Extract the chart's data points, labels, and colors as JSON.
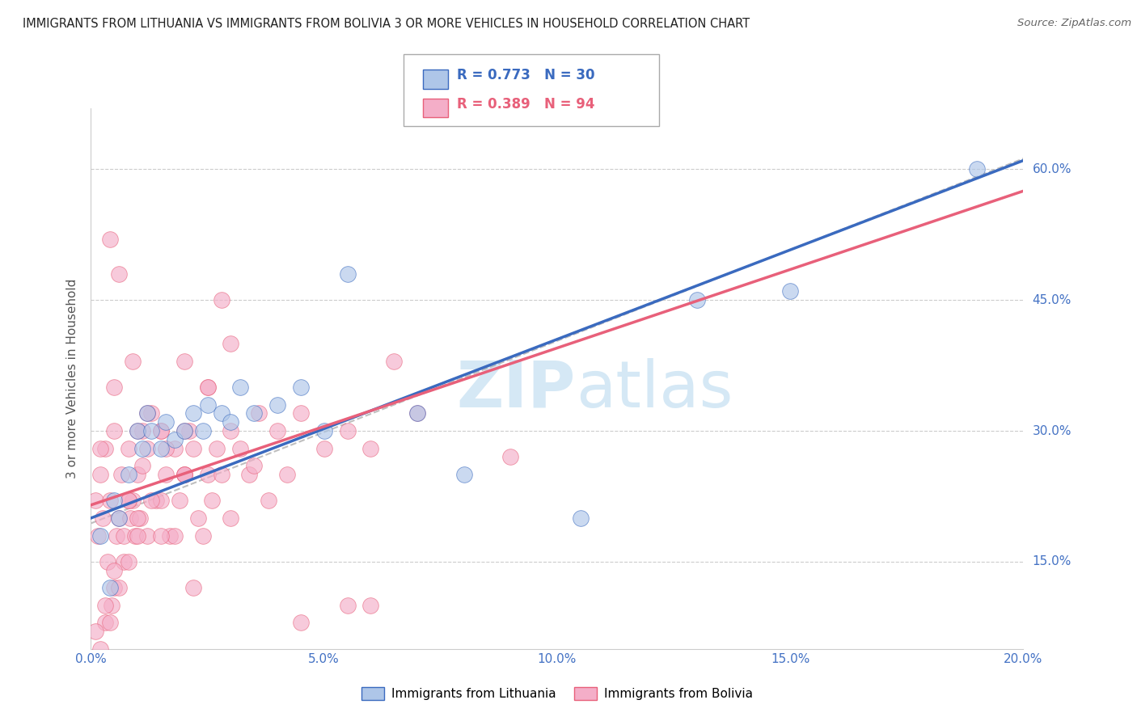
{
  "title": "IMMIGRANTS FROM LITHUANIA VS IMMIGRANTS FROM BOLIVIA 3 OR MORE VEHICLES IN HOUSEHOLD CORRELATION CHART",
  "source": "Source: ZipAtlas.com",
  "ylabel": "3 or more Vehicles in Household",
  "legend_lithuania": "Immigrants from Lithuania",
  "legend_bolivia": "Immigrants from Bolivia",
  "R_lithuania": 0.773,
  "N_lithuania": 30,
  "R_bolivia": 0.389,
  "N_bolivia": 94,
  "color_lithuania": "#aec6e8",
  "color_bolivia": "#f4aec8",
  "line_color_lithuania": "#3a6abf",
  "line_color_bolivia": "#e8607a",
  "dashed_color": "#b0b0b0",
  "watermark_color": "#d5e8f5",
  "xlim": [
    0.0,
    20.0
  ],
  "ylim": [
    5.0,
    67.0
  ],
  "ytick_vals": [
    15,
    30,
    45,
    60
  ],
  "xtick_vals": [
    0,
    5,
    10,
    15,
    20
  ],
  "lith_intercept": 20.0,
  "lith_slope": 2.05,
  "boliv_intercept": 21.5,
  "boliv_slope": 1.8,
  "lithuania_x": [
    0.2,
    0.4,
    0.5,
    0.6,
    0.8,
    1.0,
    1.1,
    1.2,
    1.3,
    1.5,
    1.6,
    1.8,
    2.0,
    2.2,
    2.4,
    2.5,
    2.8,
    3.0,
    3.2,
    3.5,
    4.0,
    4.5,
    5.0,
    5.5,
    7.0,
    8.0,
    10.5,
    13.0,
    15.0,
    19.0
  ],
  "lithuania_y": [
    18,
    12,
    22,
    20,
    25,
    30,
    28,
    32,
    30,
    28,
    31,
    29,
    30,
    32,
    30,
    33,
    32,
    31,
    35,
    32,
    33,
    35,
    30,
    48,
    32,
    25,
    20,
    45,
    46,
    60
  ],
  "bolivia_x": [
    0.1,
    0.15,
    0.2,
    0.25,
    0.3,
    0.35,
    0.4,
    0.45,
    0.5,
    0.55,
    0.6,
    0.65,
    0.7,
    0.8,
    0.85,
    0.9,
    0.95,
    1.0,
    1.05,
    1.1,
    1.2,
    1.3,
    1.4,
    1.5,
    1.6,
    1.7,
    1.8,
    1.9,
    2.0,
    2.1,
    2.2,
    2.3,
    2.4,
    2.5,
    2.6,
    2.7,
    2.8,
    3.0,
    3.2,
    3.4,
    3.6,
    3.8,
    4.0,
    4.2,
    4.5,
    5.0,
    5.5,
    6.0,
    6.5,
    7.0,
    0.3,
    0.5,
    0.7,
    1.0,
    1.2,
    1.5,
    2.0,
    2.5,
    0.2,
    0.4,
    0.6,
    0.8,
    1.0,
    1.3,
    1.6,
    2.0,
    2.5,
    3.0,
    0.1,
    0.3,
    0.5,
    0.8,
    1.1,
    1.5,
    2.0,
    2.8,
    0.4,
    0.6,
    0.9,
    1.2,
    1.8,
    2.2,
    0.2,
    0.5,
    0.8,
    1.0,
    1.5,
    2.0,
    3.0,
    4.5,
    9.0,
    6.0,
    3.5,
    5.5
  ],
  "bolivia_y": [
    22,
    18,
    25,
    20,
    28,
    15,
    22,
    10,
    30,
    18,
    20,
    25,
    18,
    28,
    20,
    22,
    18,
    25,
    20,
    30,
    28,
    32,
    22,
    30,
    25,
    18,
    28,
    22,
    25,
    30,
    28,
    20,
    18,
    25,
    22,
    28,
    25,
    30,
    28,
    25,
    32,
    22,
    30,
    25,
    32,
    28,
    30,
    28,
    38,
    32,
    8,
    12,
    15,
    20,
    18,
    22,
    25,
    35,
    5,
    8,
    12,
    15,
    18,
    22,
    28,
    30,
    35,
    40,
    7,
    10,
    14,
    22,
    26,
    30,
    38,
    45,
    52,
    48,
    38,
    32,
    18,
    12,
    28,
    35,
    22,
    30,
    18,
    25,
    20,
    8,
    27,
    10,
    26,
    10
  ]
}
